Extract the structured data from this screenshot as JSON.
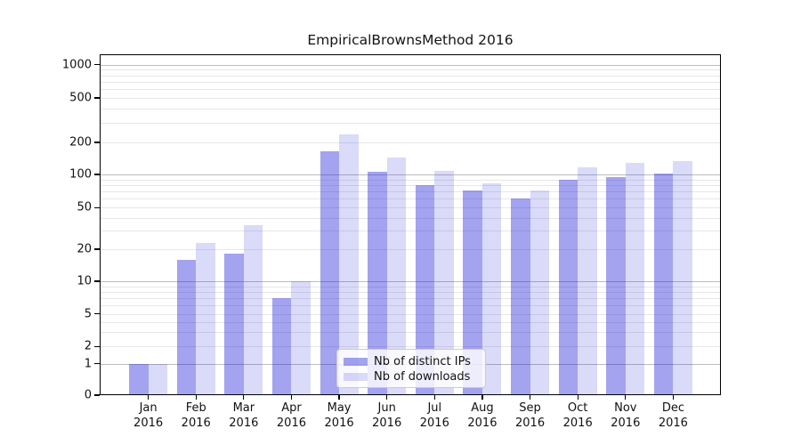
{
  "title": "EmpiricalBrownsMethod 2016",
  "chart_data": {
    "type": "bar",
    "title": "EmpiricalBrownsMethod 2016",
    "categories": [
      "Jan 2016",
      "Feb 2016",
      "Mar 2016",
      "Apr 2016",
      "May 2016",
      "Jun 2016",
      "Jul 2016",
      "Aug 2016",
      "Sep 2016",
      "Oct 2016",
      "Nov 2016",
      "Dec 2016"
    ],
    "months": [
      "Jan",
      "Feb",
      "Mar",
      "Apr",
      "May",
      "Jun",
      "Jul",
      "Aug",
      "Sep",
      "Oct",
      "Nov",
      "Dec"
    ],
    "year_label": "2016",
    "series": [
      {
        "name": "Nb of distinct IPs",
        "color": "rgba(25,25,215,0.40)",
        "values": [
          1,
          16,
          18,
          7,
          165,
          105,
          80,
          72,
          60,
          90,
          94,
          102
        ]
      },
      {
        "name": "Nb of downloads",
        "color": "rgba(25,25,215,0.16)",
        "values": [
          1,
          23,
          34,
          10,
          235,
          145,
          108,
          83,
          72,
          117,
          129,
          133
        ]
      }
    ],
    "yscale": "symlog",
    "y_ticks": [
      0,
      1,
      2,
      5,
      10,
      20,
      50,
      100,
      200,
      500,
      1000
    ],
    "ylim": [
      0,
      1400
    ],
    "grid": true,
    "legend_position": "lower center"
  },
  "colors": {
    "bar_distinct_ips": "rgba(25,25,215,0.40)",
    "bar_downloads": "rgba(25,25,215,0.16)",
    "grid_major": "#bdbdbd",
    "grid_minor": "#e7e7e7",
    "axis": "#000000",
    "background": "#ffffff"
  }
}
